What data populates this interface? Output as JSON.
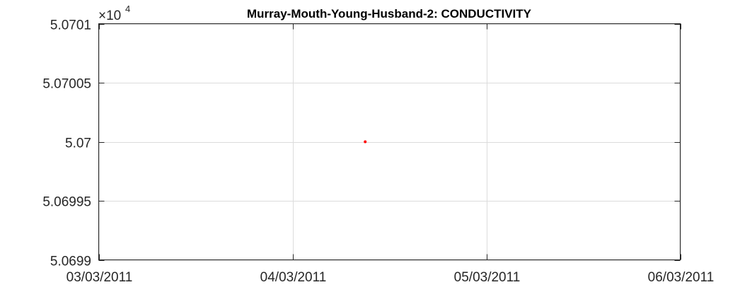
{
  "chart_data": {
    "type": "scatter",
    "title": "Murray-Mouth-Young-Husband-2: CONDUCTIVITY",
    "xlabel": "",
    "ylabel": "",
    "x_ticks": [
      "03/03/2011",
      "04/03/2011",
      "05/03/2011",
      "06/03/2011"
    ],
    "y_ticks": [
      "5.0699",
      "5.06995",
      "5.07",
      "5.07005",
      "5.0701"
    ],
    "y_tick_values": [
      50699,
      50699.5,
      50700,
      50700.5,
      50701
    ],
    "y_exponent_base": "×10",
    "y_exponent_power": "4",
    "xlim": [
      "03/03/2011",
      "06/03/2011"
    ],
    "ylim": [
      50699,
      50701
    ],
    "grid": true,
    "series": [
      {
        "color": "#ff0000",
        "points": [
          {
            "x": "04/03/2011 09:00",
            "y": 50700
          }
        ]
      }
    ]
  }
}
